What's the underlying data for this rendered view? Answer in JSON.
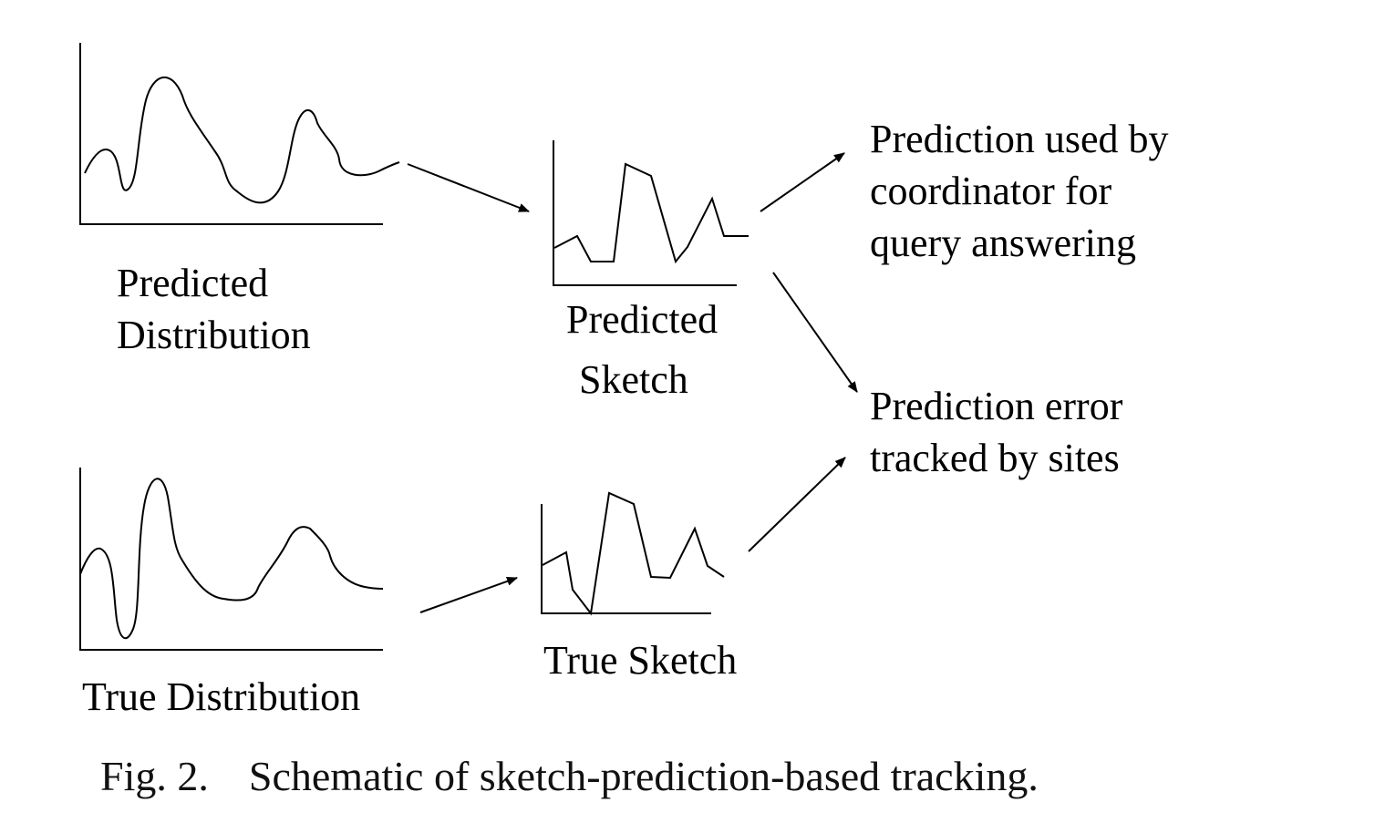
{
  "labels": {
    "predicted_distribution": [
      "Predicted",
      "Distribution"
    ],
    "predicted_sketch": [
      "Predicted",
      "Sketch"
    ],
    "true_distribution": "True Distribution",
    "true_sketch": "True Sketch",
    "coordinator_use": [
      "Prediction used by",
      "coordinator for",
      "query answering"
    ],
    "error_tracked": [
      "Prediction error",
      "tracked by sites"
    ]
  },
  "caption": {
    "number": "Fig. 2.",
    "text": "Schematic of sketch-prediction-based tracking."
  }
}
